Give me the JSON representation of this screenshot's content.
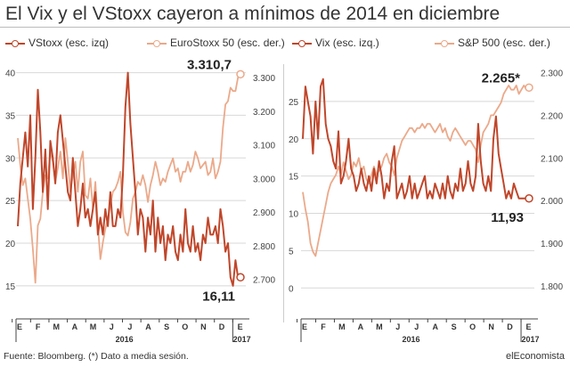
{
  "title": "El Vix y el VStoxx cayeron a mínimos de 2014 en diciembre",
  "source": "Fuente: Bloomberg. (*) Dato a media sesión.",
  "brand": "elEconomista",
  "colors": {
    "dark": "#c0462a",
    "light": "#eba98a",
    "grid": "#d8d8d8",
    "axis": "#444444"
  },
  "chart_data": [
    {
      "type": "line",
      "month_labels": [
        "E",
        "F",
        "M",
        "A",
        "M",
        "J",
        "J",
        "A",
        "S",
        "O",
        "N",
        "D",
        "E"
      ],
      "year_labels": [
        "2016",
        "2017"
      ],
      "left_axis": {
        "ticks": [
          15,
          20,
          25,
          30,
          35,
          40
        ],
        "range": [
          13,
          41
        ]
      },
      "right_axis": {
        "ticks": [
          "2.700",
          "2.800",
          "2.900",
          "3.000",
          "3.100",
          "3.200",
          "3.300"
        ],
        "tick_values": [
          2700,
          2800,
          2900,
          3000,
          3100,
          3200,
          3300
        ],
        "range": [
          2630,
          3340
        ]
      },
      "series": [
        {
          "name": "VStoxx (esc. izq)",
          "axis": "left",
          "color": "dark",
          "end_label": "16,11",
          "values": [
            22,
            27,
            30,
            33,
            29,
            35,
            24,
            30,
            38,
            33,
            26,
            31,
            24,
            32,
            30,
            27,
            33,
            35,
            32,
            29,
            26,
            25,
            30,
            26,
            22,
            24,
            27,
            23,
            24,
            22,
            24,
            26,
            21,
            23,
            21,
            24,
            22,
            26,
            22,
            22,
            24,
            23,
            28,
            36,
            40,
            34,
            30,
            26,
            21,
            24,
            23,
            19,
            23,
            21,
            25,
            19,
            23,
            20,
            22,
            18,
            21,
            20,
            22,
            19,
            18,
            21,
            19,
            24,
            20,
            19,
            22,
            19,
            20,
            18,
            21,
            20,
            23,
            21,
            21,
            22,
            20,
            24,
            22,
            19,
            20,
            16,
            15,
            18,
            16,
            16
          ]
        },
        {
          "name": "EuroStoxx 50 (esc. der.)",
          "axis": "right",
          "color": "light",
          "end_label": "3.310,7",
          "values": [
            3120,
            3040,
            2980,
            3000,
            2940,
            2880,
            2790,
            2690,
            2860,
            2880,
            2960,
            3010,
            3000,
            3080,
            3050,
            2990,
            3030,
            3080,
            3000,
            3120,
            3050,
            2960,
            3010,
            3050,
            2960,
            3050,
            3080,
            2950,
            2940,
            3000,
            2910,
            2990,
            2860,
            2760,
            2810,
            2850,
            2880,
            2920,
            2960,
            2970,
            2990,
            3020,
            2900,
            2840,
            2830,
            2870,
            2940,
            2960,
            2990,
            2980,
            3010,
            2980,
            2930,
            2980,
            3010,
            3050,
            3020,
            2980,
            3000,
            2990,
            3020,
            3040,
            3060,
            3020,
            3030,
            2990,
            3020,
            3020,
            3050,
            3020,
            3040,
            3080,
            3060,
            3030,
            3040,
            3050,
            3010,
            3020,
            3060,
            3000,
            3020,
            3050,
            3150,
            3220,
            3230,
            3270,
            3260,
            3260,
            3300,
            3310
          ]
        }
      ]
    },
    {
      "type": "line",
      "month_labels": [
        "E",
        "F",
        "M",
        "A",
        "M",
        "J",
        "J",
        "A",
        "S",
        "O",
        "N",
        "D",
        "E"
      ],
      "year_labels": [
        "2016",
        "2017"
      ],
      "left_axis": {
        "ticks": [
          0,
          5,
          10,
          15,
          20,
          25
        ],
        "range": [
          -2,
          30
        ]
      },
      "right_axis": {
        "ticks": [
          "1.800",
          "1.900",
          "2.000",
          "2.100",
          "2.200",
          "2.300"
        ],
        "tick_values": [
          1800,
          1900,
          2000,
          2100,
          2200,
          2300
        ],
        "range": [
          1760,
          2320
        ]
      },
      "series": [
        {
          "name": "Vix (esc. izq.)",
          "axis": "left",
          "color": "dark",
          "end_label": "11,93",
          "values": [
            20,
            27,
            25,
            23,
            18,
            25,
            20,
            27,
            28,
            22,
            20,
            19,
            17,
            16,
            21,
            14,
            15,
            17,
            20,
            16,
            15,
            13,
            14,
            16,
            14,
            13,
            15,
            13,
            16,
            14,
            17,
            15,
            12,
            14,
            13,
            17,
            19,
            12,
            13,
            14,
            12,
            13,
            15,
            12,
            14,
            12,
            13,
            14,
            15,
            12,
            13,
            12,
            14,
            13,
            12,
            14,
            12,
            15,
            13,
            12,
            14,
            13,
            16,
            13,
            14,
            17,
            14,
            13,
            15,
            22,
            17,
            14,
            13,
            15,
            13,
            20,
            23,
            18,
            16,
            14,
            12,
            13,
            12,
            14,
            13,
            12,
            12,
            12,
            12,
            12
          ]
        },
        {
          "name": "S&P 500 (esc. der.)",
          "axis": "right",
          "color": "light",
          "end_label": "2.265*",
          "values": [
            2020,
            1980,
            1950,
            1900,
            1880,
            1870,
            1900,
            1930,
            1960,
            1990,
            2020,
            2040,
            2050,
            2060,
            2080,
            2060,
            2090,
            2070,
            2050,
            2060,
            2090,
            2080,
            2100,
            2070,
            2080,
            2050,
            2040,
            2060,
            2080,
            2060,
            2070,
            2080,
            2100,
            2110,
            2090,
            2080,
            2060,
            2100,
            2120,
            2140,
            2150,
            2160,
            2170,
            2170,
            2160,
            2170,
            2170,
            2180,
            2170,
            2180,
            2180,
            2170,
            2160,
            2170,
            2180,
            2160,
            2170,
            2150,
            2140,
            2160,
            2170,
            2160,
            2150,
            2140,
            2130,
            2140,
            2140,
            2130,
            2120,
            2090,
            2130,
            2160,
            2170,
            2180,
            2200,
            2200,
            2210,
            2220,
            2230,
            2250,
            2260,
            2270,
            2260,
            2260,
            2270,
            2250,
            2260,
            2270,
            2260,
            2265
          ]
        }
      ]
    }
  ]
}
